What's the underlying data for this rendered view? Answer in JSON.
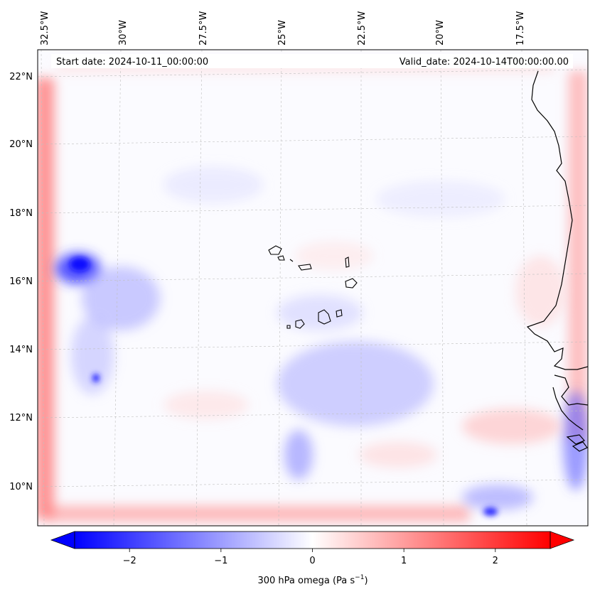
{
  "map": {
    "header": {
      "start_date": "Start date: 2024-10-11_00:00:00",
      "valid_date": "Valid_date: 2024-10-14T00:00:00.00"
    },
    "lon_labels": [
      "32.5°W",
      "30°W",
      "27.5°W",
      "25°W",
      "22.5°W",
      "20°W",
      "17.5°W"
    ],
    "lat_labels": [
      "22°N",
      "20°N",
      "18°N",
      "16°N",
      "14°N",
      "12°N",
      "10°N"
    ],
    "colorbar": {
      "ticks": [
        "−2",
        "−1",
        "0",
        "1",
        "2"
      ],
      "tick_values": [
        -2,
        -1,
        0,
        1,
        2
      ],
      "range": [
        -2.6,
        2.6
      ],
      "label_main": "300 hPa omega (Pa s",
      "label_exp": "−1",
      "label_end": ")",
      "colormap": "bwr",
      "low_color": "#0000ff",
      "mid_color": "#ffffff",
      "high_color": "#ff0000"
    },
    "field": {
      "variable": "omega",
      "level": "300 hPa",
      "grid": "dashed"
    }
  }
}
